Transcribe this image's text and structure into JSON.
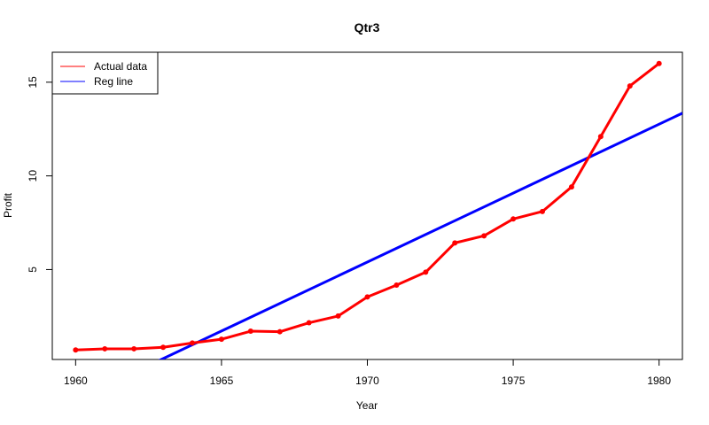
{
  "chart_data": {
    "type": "line",
    "title": "Qtr3",
    "xlabel": "Year",
    "ylabel": "Profit",
    "xlim": [
      1959.2,
      1980.8
    ],
    "ylim": [
      0.2,
      16.6
    ],
    "x_ticks": [
      1960,
      1965,
      1970,
      1975,
      1980
    ],
    "y_ticks": [
      5,
      10,
      15
    ],
    "grid": false,
    "legend_position": "top-left",
    "series": [
      {
        "name": "Actual data",
        "color": "#ff0000",
        "x": [
          1960,
          1961,
          1962,
          1963,
          1964,
          1965,
          1966,
          1967,
          1968,
          1969,
          1970,
          1971,
          1972,
          1973,
          1974,
          1975,
          1976,
          1977,
          1978,
          1979,
          1980
        ],
        "y": [
          0.71,
          0.77,
          0.77,
          0.85,
          1.08,
          1.28,
          1.71,
          1.68,
          2.16,
          2.52,
          3.54,
          4.17,
          4.86,
          6.42,
          6.8,
          7.7,
          8.1,
          9.41,
          12.1,
          14.8,
          16.0
        ]
      }
    ],
    "regression": {
      "name": "Reg line",
      "color": "#0000ff",
      "intercept_1960": -1.96,
      "slope": 0.736
    }
  }
}
